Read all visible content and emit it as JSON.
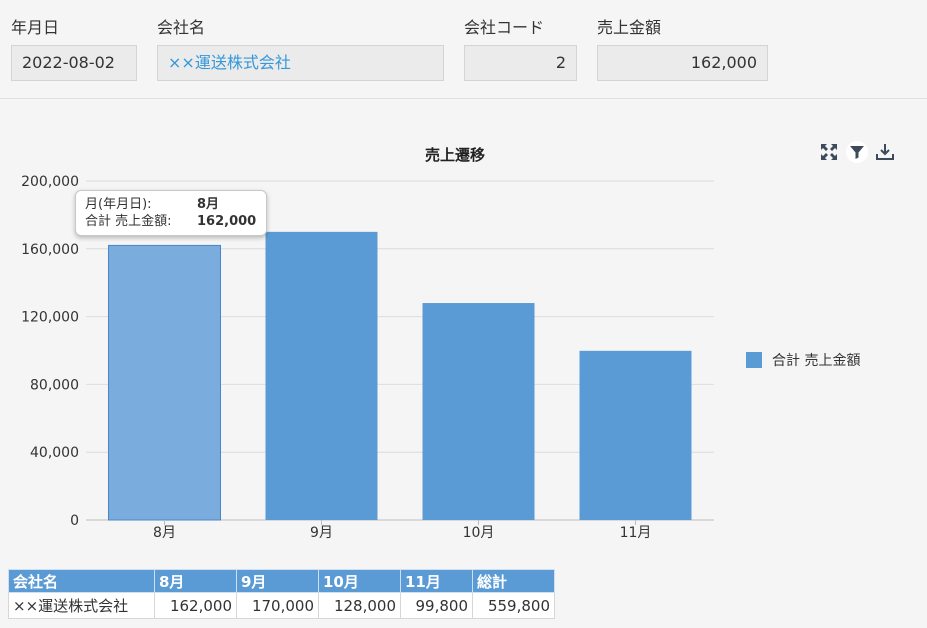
{
  "form": {
    "date_label": "年月日",
    "date_value": "2022-08-02",
    "company_label": "会社名",
    "company_value": "××運送株式会社",
    "code_label": "会社コード",
    "code_value": "2",
    "sales_label": "売上金額",
    "sales_value": "162,000"
  },
  "chart_toolbar": {
    "icons": [
      "expand-icon",
      "filter-icon",
      "download-icon"
    ]
  },
  "tooltip": {
    "row1_key": "月(年月日):",
    "row1_value": "8月",
    "row2_key": "合計 売上金額:",
    "row2_value": "162,000"
  },
  "chart_data": {
    "type": "bar",
    "title": "売上遷移",
    "categories": [
      "8月",
      "9月",
      "10月",
      "11月"
    ],
    "series": [
      {
        "name": "合計 売上金額",
        "values": [
          162000,
          170000,
          128000,
          99800
        ],
        "color": "#5b9bd5"
      }
    ],
    "highlighted_index": 0,
    "highlight_color": "#7aaddd",
    "ylim": [
      0,
      200000
    ],
    "yticks": [
      0,
      40000,
      80000,
      120000,
      160000,
      200000
    ],
    "ytick_labels": [
      "0",
      "40,000",
      "80,000",
      "120,000",
      "160,000",
      "200,000"
    ],
    "grid": true,
    "legend_position": "right"
  },
  "table": {
    "headers": [
      "会社名",
      "8月",
      "9月",
      "10月",
      "11月",
      "総計"
    ],
    "rows": [
      [
        "××運送株式会社",
        "162,000",
        "170,000",
        "128,000",
        "99,800",
        "559,800"
      ]
    ]
  }
}
